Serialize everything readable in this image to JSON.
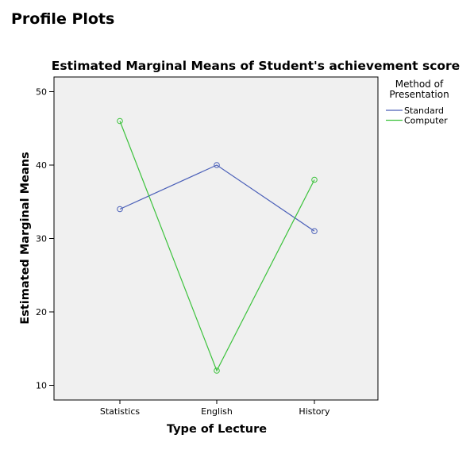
{
  "page": {
    "title": "Profile Plots"
  },
  "chart_data": {
    "type": "line",
    "title": "Estimated Marginal Means of Student's achievement score",
    "xlabel": "Type of Lecture",
    "ylabel": "Estimated Marginal Means",
    "categories": [
      "Statistics",
      "English",
      "History"
    ],
    "ylim": [
      8,
      52
    ],
    "yticks": [
      10,
      20,
      30,
      40,
      50
    ],
    "grid": false,
    "legend": {
      "title_lines": [
        "Method of",
        "Presentation"
      ],
      "placement": "right"
    },
    "series": [
      {
        "name": "Standard",
        "color": "#4a5fb8",
        "values": [
          34,
          40,
          31
        ]
      },
      {
        "name": "Computer",
        "color": "#3cc23c",
        "values": [
          46,
          12,
          38
        ]
      }
    ],
    "plot_background": "#f0f0f0"
  }
}
